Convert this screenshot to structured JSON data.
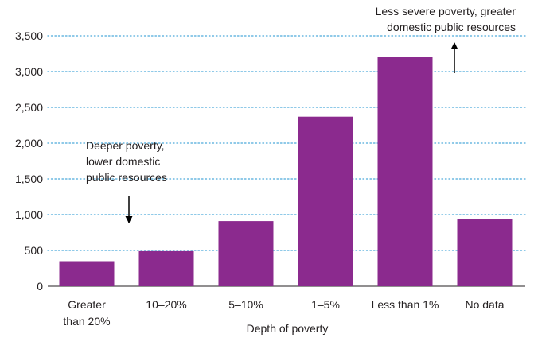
{
  "chart_data": {
    "type": "bar",
    "categories": [
      [
        "Greater",
        "than 20%"
      ],
      [
        "10–20%"
      ],
      [
        "5–10%"
      ],
      [
        "1–5%"
      ],
      [
        "Less than 1%"
      ],
      [
        "No data"
      ]
    ],
    "values": [
      350,
      490,
      910,
      2370,
      3200,
      940
    ],
    "title": "",
    "xlabel": "Depth of poverty",
    "ylabel": "",
    "ylim": [
      0,
      3500
    ],
    "yticks": [
      0,
      500,
      1000,
      1500,
      2000,
      2500,
      3000,
      3500
    ],
    "ytick_labels": [
      "0",
      "500",
      "1,000",
      "1,500",
      "2,000",
      "2,500",
      "3,000",
      "3,500"
    ],
    "grid": "horizontal-dotted",
    "bar_color": "#8b2a8e",
    "grid_color": "#4aa9d9",
    "annotations": [
      {
        "lines": [
          "Deeper poverty,",
          "lower domestic",
          "public resources"
        ],
        "arrow": "down",
        "near_category": 1
      },
      {
        "lines": [
          "Less severe poverty, greater",
          "domestic public resources"
        ],
        "arrow": "up",
        "near_category": 4
      }
    ]
  }
}
